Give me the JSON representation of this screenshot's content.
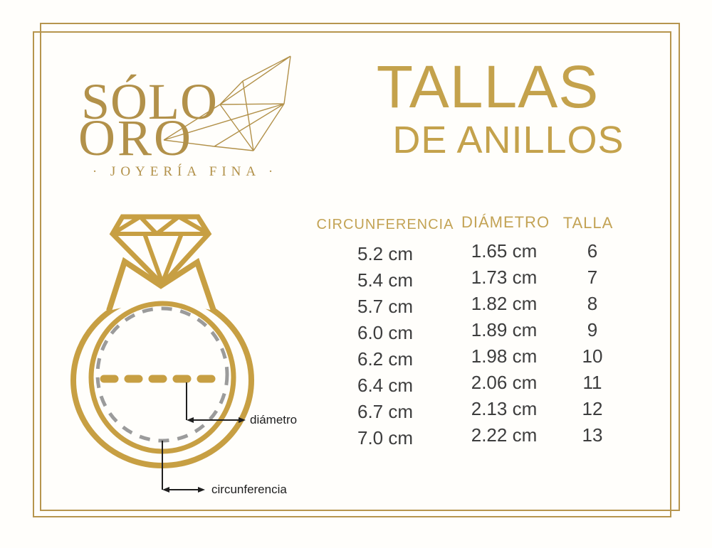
{
  "logo": {
    "name_line1": "SÓLO",
    "name_line2": "ORO",
    "tagline": "· JOYERÍA FINA ·"
  },
  "title": {
    "line1": "TALLAS",
    "line2": "DE ANILLOS"
  },
  "diagram": {
    "diameter_label": "diámetro",
    "circumference_label": "circunferencia"
  },
  "icons": {
    "logo_art": "crystal-diamond-line-art",
    "diagram_art": "diamond-ring-outline"
  },
  "chart_data": {
    "type": "table",
    "columns": [
      "CIRCUNFERENCIA",
      "DIÁMETRO",
      "TALLA"
    ],
    "rows": [
      [
        "5.2 cm",
        "1.65 cm",
        "6"
      ],
      [
        "5.4 cm",
        "1.73 cm",
        "7"
      ],
      [
        "5.7 cm",
        "1.82 cm",
        "8"
      ],
      [
        "6.0 cm",
        "1.89 cm",
        "9"
      ],
      [
        "6.2 cm",
        "1.98 cm",
        "10"
      ],
      [
        "6.4 cm",
        "2.06 cm",
        "11"
      ],
      [
        "6.7 cm",
        "2.13 cm",
        "12"
      ],
      [
        "7.0 cm",
        "2.22 cm",
        "13"
      ]
    ]
  },
  "colors": {
    "gold_frame": "#b6954e",
    "gold_logo": "#b2914a",
    "gold_title": "#c4a24c",
    "gold_header": "#c3a355",
    "gold_ring": "#c79f43",
    "gray_dash": "#9b9b9b",
    "text_dark": "#3d3d3d",
    "annotation": "#1f1f1f",
    "background": "#fffefb"
  }
}
